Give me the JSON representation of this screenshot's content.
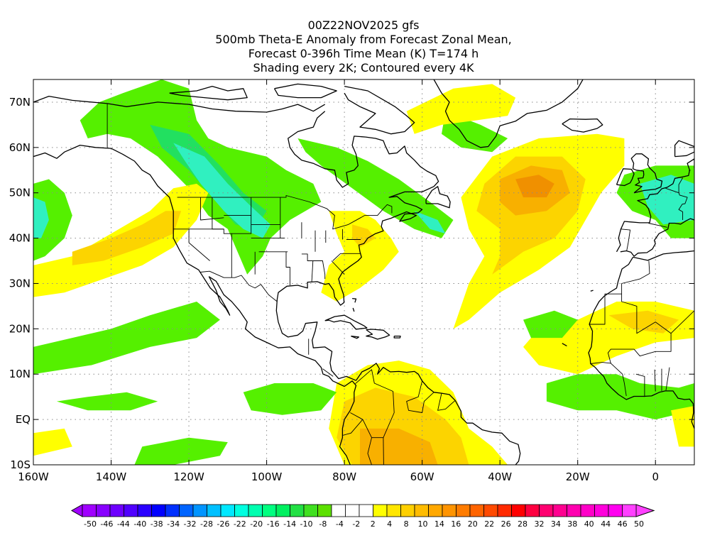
{
  "title": {
    "line1": "00Z22NOV2025 gfs",
    "line2": "500mb Theta-E Anomaly from Forecast Zonal Mean,",
    "line3": "Forecast 0-396h Time Mean (K) T=174 h",
    "line4": "Shading every 2K; Contoured every 4K"
  },
  "map": {
    "lon_range": [
      -160,
      10
    ],
    "lat_range": [
      -10,
      75
    ],
    "lat_labels": [
      {
        "lat": 70,
        "label": "70N"
      },
      {
        "lat": 60,
        "label": "60N"
      },
      {
        "lat": 50,
        "label": "50N"
      },
      {
        "lat": 40,
        "label": "40N"
      },
      {
        "lat": 30,
        "label": "30N"
      },
      {
        "lat": 20,
        "label": "20N"
      },
      {
        "lat": 10,
        "label": "10N"
      },
      {
        "lat": 0,
        "label": "EQ"
      },
      {
        "lat": -10,
        "label": "10S"
      }
    ],
    "lon_labels": [
      {
        "lon": -160,
        "label": "160W"
      },
      {
        "lon": -140,
        "label": "140W"
      },
      {
        "lon": -120,
        "label": "120W"
      },
      {
        "lon": -100,
        "label": "100W"
      },
      {
        "lon": -80,
        "label": "80W"
      },
      {
        "lon": -60,
        "label": "60W"
      },
      {
        "lon": -40,
        "label": "40W"
      },
      {
        "lon": -20,
        "label": "20W"
      },
      {
        "lon": 0,
        "label": "0"
      }
    ],
    "colors": {
      "green": "#55f000",
      "green_light": "#22e060",
      "cyan": "#30f0c0",
      "yellow": "#ffff00",
      "gold": "#fcd400",
      "orange": "#f8b000",
      "dark_orange": "#f09000"
    }
  },
  "colorbar": {
    "colors": [
      "#a000ff",
      "#8800ff",
      "#6e00ff",
      "#5000ff",
      "#2a00ff",
      "#0000ff",
      "#0030ff",
      "#0064ff",
      "#0094ff",
      "#00c0ff",
      "#00e8ff",
      "#00ffe0",
      "#00ffb0",
      "#00ff80",
      "#00f060",
      "#22e044",
      "#40e020",
      "#5ce000",
      "#ffffff",
      "#ffffff",
      "#ffffff",
      "#ffff00",
      "#ffe600",
      "#ffd000",
      "#ffbc00",
      "#ffa800",
      "#ff9400",
      "#ff7c00",
      "#ff6400",
      "#ff4a00",
      "#ff2a00",
      "#ff0000",
      "#ff0040",
      "#ff0070",
      "#ff0090",
      "#ff00b0",
      "#ff00c8",
      "#ff00dc",
      "#ff00f0",
      "#ff40ff"
    ],
    "labels": [
      "-50",
      "-46",
      "-44",
      "-40",
      "-38",
      "-34",
      "-32",
      "-28",
      "-26",
      "-22",
      "-20",
      "-16",
      "-14",
      "-10",
      "-8",
      "-4",
      "-2",
      "2",
      "4",
      "8",
      "10",
      "14",
      "16",
      "20",
      "22",
      "26",
      "28",
      "32",
      "34",
      "38",
      "40",
      "44",
      "46",
      "50"
    ]
  }
}
